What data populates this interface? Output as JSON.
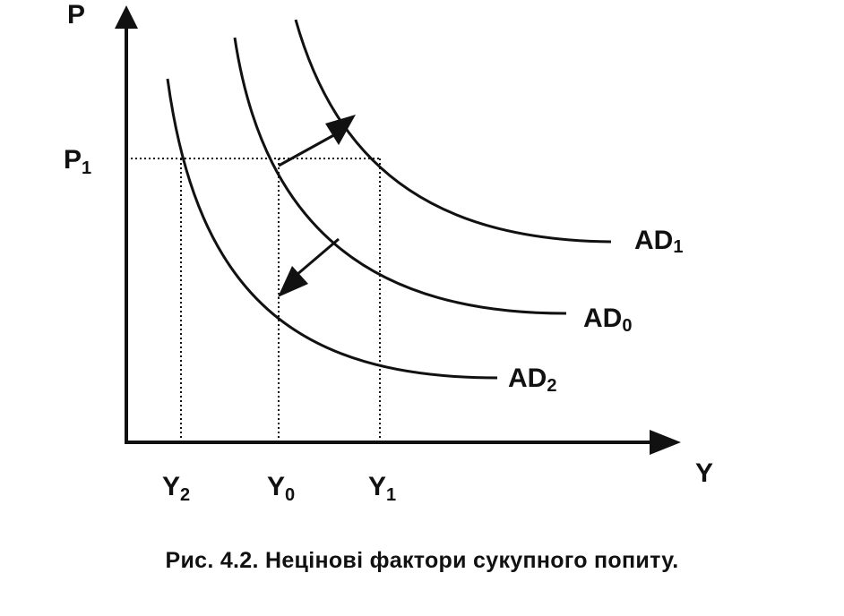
{
  "axes": {
    "y_label": "P",
    "x_label": "Y"
  },
  "price_level": {
    "main": "P",
    "sub": "1"
  },
  "output_levels": [
    {
      "main": "Y",
      "sub": "2"
    },
    {
      "main": "Y",
      "sub": "0"
    },
    {
      "main": "Y",
      "sub": "1"
    }
  ],
  "curves": [
    {
      "main": "AD",
      "sub": "1"
    },
    {
      "main": "AD",
      "sub": "0"
    },
    {
      "main": "AD",
      "sub": "2"
    }
  ],
  "caption": "Рис. 4.2. Нецінові фактори сукупного попиту."
}
